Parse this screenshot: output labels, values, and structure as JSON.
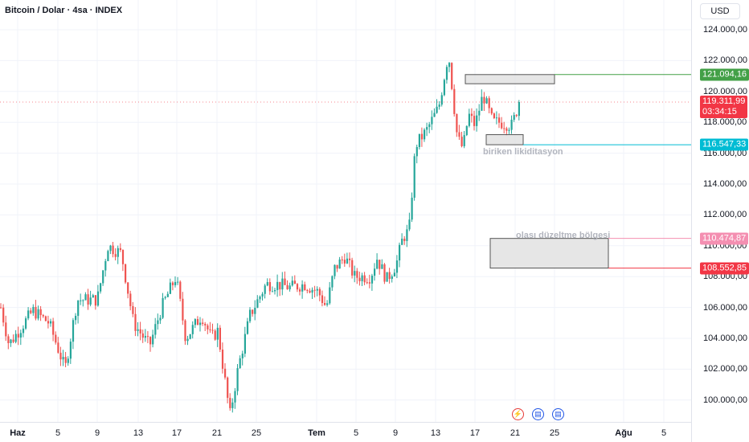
{
  "header": {
    "title": "Bitcoin / Dolar · 4sa · INDEX"
  },
  "price_axis": {
    "currency": "USD",
    "ticks": [
      "124.000,00",
      "122.000,00",
      "120.000,00",
      "118.000,00",
      "116.000,00",
      "114.000,00",
      "112.000,00",
      "110.000,00",
      "108.000,00",
      "106.000,00",
      "104.000,00",
      "102.000,00",
      "100.000,00"
    ],
    "tick_values": [
      124000,
      122000,
      120000,
      118000,
      116000,
      114000,
      112000,
      110000,
      108000,
      106000,
      104000,
      102000,
      100000
    ],
    "range": [
      99000,
      126000
    ],
    "labels": {
      "upper_zone": {
        "text": "121.094,16",
        "value": 121094.16,
        "color": "#43a047"
      },
      "current_price": {
        "text": "119.311,99",
        "value": 119311.99,
        "color": "#f23645"
      },
      "countdown": {
        "text": "03:34:15"
      },
      "liquidity": {
        "text": "116.547,33",
        "value": 116547.33,
        "color": "#00bcd4"
      },
      "correction_top": {
        "text": "110.474,87",
        "value": 110474.87,
        "color": "#f48fb1"
      },
      "correction_bottom": {
        "text": "108.552,85",
        "value": 108552.85,
        "color": "#f23645"
      }
    }
  },
  "time_axis": {
    "ticks": [
      {
        "label": "Haz",
        "bold": true
      },
      {
        "label": "5",
        "bold": false
      },
      {
        "label": "9",
        "bold": false
      },
      {
        "label": "13",
        "bold": false
      },
      {
        "label": "17",
        "bold": false
      },
      {
        "label": "21",
        "bold": false
      },
      {
        "label": "25",
        "bold": false
      },
      {
        "label": "Tem",
        "bold": true
      },
      {
        "label": "5",
        "bold": false
      },
      {
        "label": "9",
        "bold": false
      },
      {
        "label": "13",
        "bold": false
      },
      {
        "label": "17",
        "bold": false
      },
      {
        "label": "21",
        "bold": false
      },
      {
        "label": "25",
        "bold": false
      },
      {
        "label": "Ağu",
        "bold": true
      },
      {
        "label": "5",
        "bold": false
      }
    ]
  },
  "annotations": {
    "liquidity_label": "biriken likiditasyon",
    "correction_label": "olası düzeltme bölgesi"
  },
  "colors": {
    "up": "#26a69a",
    "down": "#ef5350",
    "grid": "#f0f3fa"
  },
  "chart_data": {
    "type": "candlestick",
    "timeframe": "4h",
    "ylim": [
      99000,
      126000
    ],
    "key_points": [
      {
        "x": "Haz 1",
        "y": 106000
      },
      {
        "x": "Haz 2",
        "y": 103600
      },
      {
        "x": "Haz 5",
        "y": 102000
      },
      {
        "x": "Haz 9",
        "y": 106500
      },
      {
        "x": "Haz 10",
        "y": 110000
      },
      {
        "x": "Haz 13",
        "y": 105000
      },
      {
        "x": "Haz 16",
        "y": 108000
      },
      {
        "x": "Haz 17",
        "y": 104000
      },
      {
        "x": "Haz 20",
        "y": 104500
      },
      {
        "x": "Haz 22",
        "y": 99000
      },
      {
        "x": "Haz 24",
        "y": 104500
      },
      {
        "x": "Haz 26",
        "y": 107500
      },
      {
        "x": "Haz 30",
        "y": 107000
      },
      {
        "x": "Tem 2",
        "y": 106000
      },
      {
        "x": "Tem 3",
        "y": 109300
      },
      {
        "x": "Tem 5",
        "y": 108000
      },
      {
        "x": "Tem 8",
        "y": 108500
      },
      {
        "x": "Tem 9",
        "y": 111000
      },
      {
        "x": "Tem 10",
        "y": 116500
      },
      {
        "x": "Tem 11",
        "y": 117500
      },
      {
        "x": "Tem 13",
        "y": 119000
      },
      {
        "x": "Tem 14",
        "y": 122500
      },
      {
        "x": "Tem 15",
        "y": 116500
      },
      {
        "x": "Tem 17",
        "y": 119800
      },
      {
        "x": "Tem 18",
        "y": 118000
      },
      {
        "x": "Tem 20",
        "y": 117800
      },
      {
        "x": "Tem 21",
        "y": 119312
      }
    ],
    "zones": [
      {
        "name": "upper",
        "low": 120500,
        "high": 121094.16
      },
      {
        "name": "biriken likiditasyon",
        "low": 116547.33,
        "high": 117200
      },
      {
        "name": "olası düzeltme bölgesi",
        "low": 108552.85,
        "high": 110474.87
      }
    ]
  }
}
